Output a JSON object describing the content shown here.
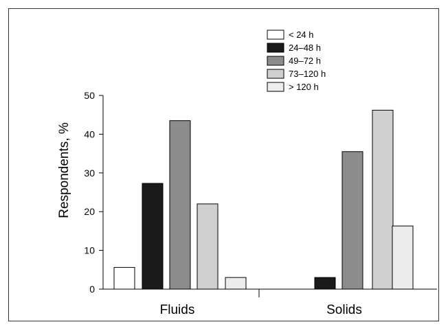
{
  "chart_data": {
    "type": "bar",
    "categories": [
      "Fluids",
      "Solids"
    ],
    "series": [
      {
        "name": "< 24 h",
        "values": [
          5.6,
          0
        ],
        "color": "#ffffff"
      },
      {
        "name": "24–48 h",
        "values": [
          27.3,
          3.0
        ],
        "color": "#1a1a1a"
      },
      {
        "name": "49–72 h",
        "values": [
          43.5,
          35.5
        ],
        "color": "#8c8c8c"
      },
      {
        "name": "73–120 h",
        "values": [
          22.0,
          46.2
        ],
        "color": "#d0d0d0"
      },
      {
        "name": "> 120 h",
        "values": [
          3.0,
          16.3
        ],
        "color": "#ececec"
      }
    ],
    "xlabel": "",
    "ylabel": "Respondents, %",
    "ylim": [
      0,
      50
    ],
    "yticks": [
      "0",
      "10",
      "20",
      "30",
      "40",
      "50"
    ],
    "grid": false,
    "legend_position": "top-right"
  }
}
